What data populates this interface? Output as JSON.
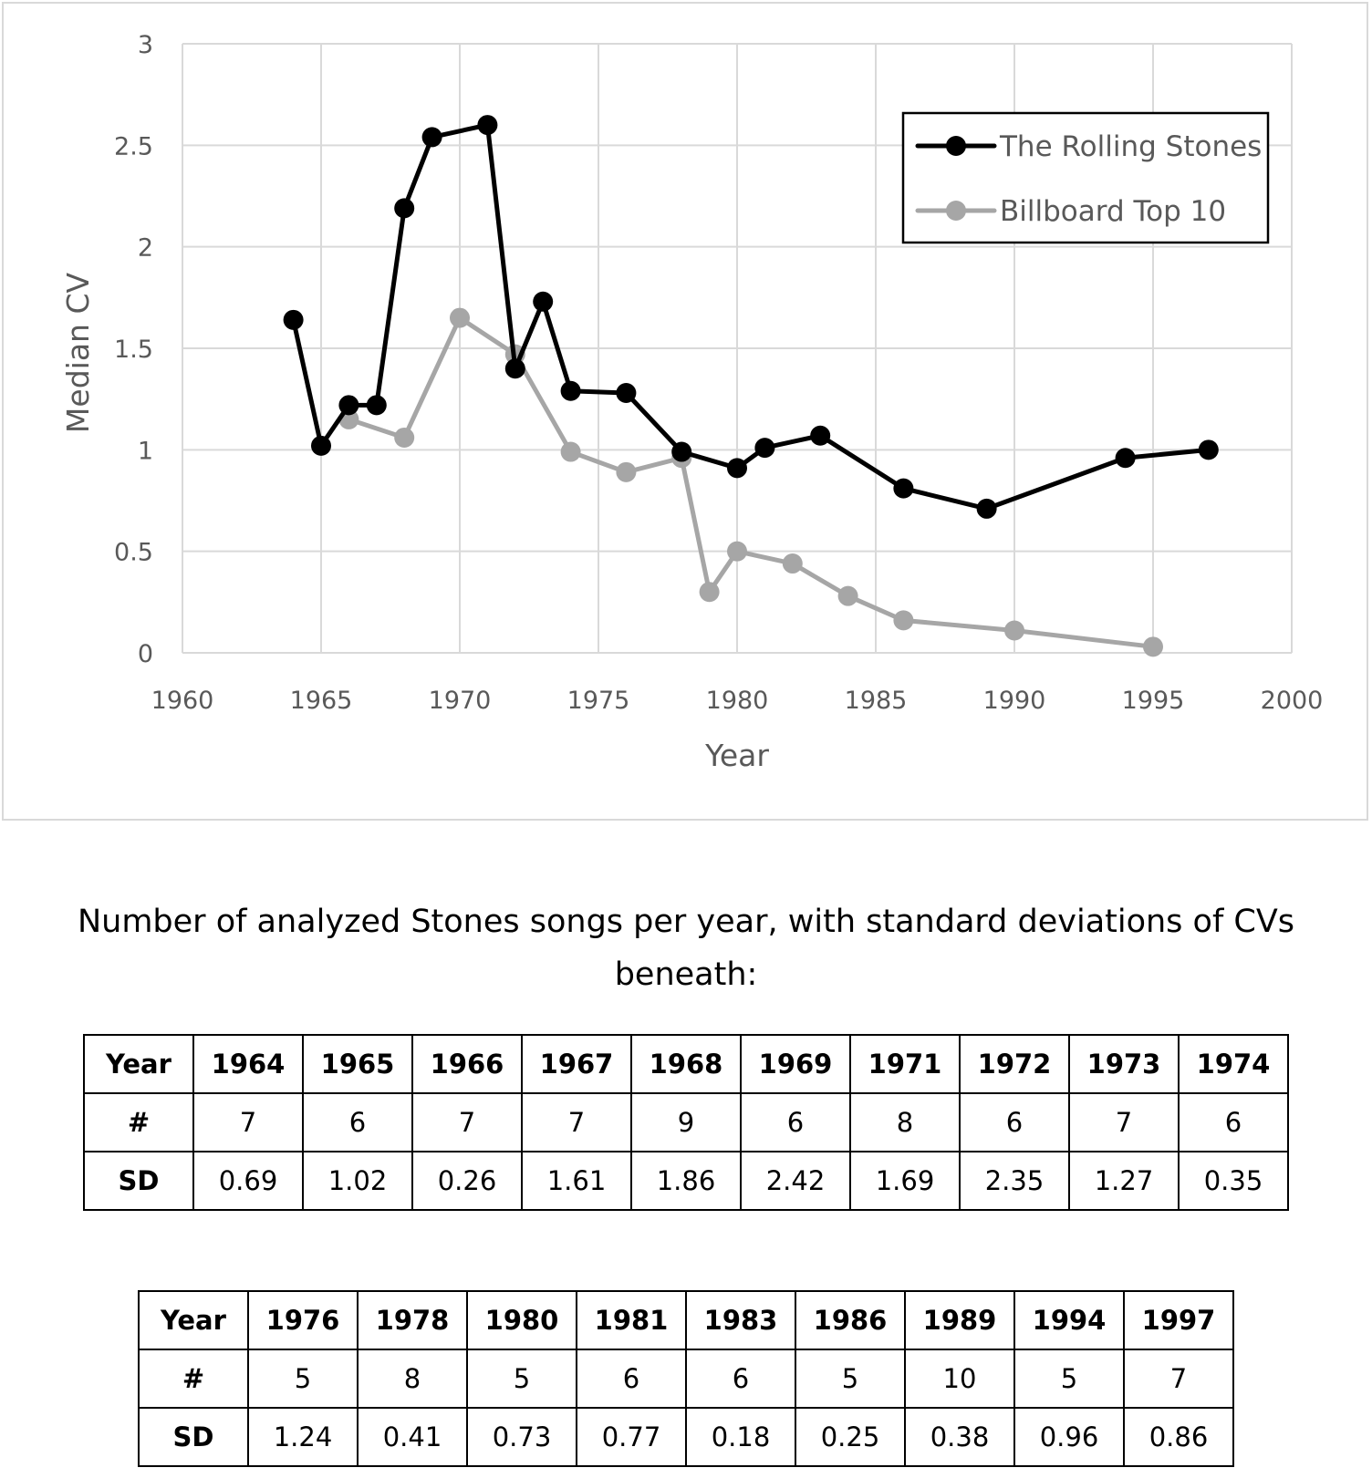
{
  "chart_data": {
    "type": "line",
    "title": "",
    "xlabel": "Year",
    "ylabel": "Median CV",
    "xlim": [
      1960,
      2000
    ],
    "ylim": [
      0,
      3
    ],
    "x_ticks": [
      "1960",
      "1965",
      "1970",
      "1975",
      "1980",
      "1985",
      "1990",
      "1995",
      "2000"
    ],
    "y_ticks": [
      "0",
      "0.5",
      "1",
      "1.5",
      "2",
      "2.5",
      "3"
    ],
    "grid": true,
    "legend_position": "top-right",
    "series": [
      {
        "name": "The Rolling Stones",
        "color": "#000000",
        "points": [
          [
            1964,
            1.64
          ],
          [
            1965,
            1.02
          ],
          [
            1966,
            1.22
          ],
          [
            1967,
            1.22
          ],
          [
            1968,
            2.19
          ],
          [
            1969,
            2.54
          ],
          [
            1971,
            2.6
          ],
          [
            1972,
            1.4
          ],
          [
            1973,
            1.73
          ],
          [
            1974,
            1.29
          ],
          [
            1976,
            1.28
          ],
          [
            1978,
            0.99
          ],
          [
            1980,
            0.91
          ],
          [
            1981,
            1.01
          ],
          [
            1983,
            1.07
          ],
          [
            1986,
            0.81
          ],
          [
            1989,
            0.71
          ],
          [
            1994,
            0.96
          ],
          [
            1997,
            1.0
          ]
        ]
      },
      {
        "name": "Billboard Top 10",
        "color": "#a6a6a6",
        "points": [
          [
            1966,
            1.15
          ],
          [
            1968,
            1.06
          ],
          [
            1970,
            1.65
          ],
          [
            1972,
            1.47
          ],
          [
            1974,
            0.99
          ],
          [
            1976,
            0.89
          ],
          [
            1978,
            0.96
          ],
          [
            1979,
            0.3
          ],
          [
            1980,
            0.5
          ],
          [
            1982,
            0.44
          ],
          [
            1984,
            0.28
          ],
          [
            1986,
            0.16
          ],
          [
            1990,
            0.11
          ],
          [
            1995,
            0.03
          ]
        ]
      }
    ]
  },
  "caption": {
    "line1": "Number of analyzed Stones songs per year, with standard deviations of CVs",
    "line2": "beneath:"
  },
  "tables": [
    {
      "rows": [
        [
          "Year",
          "1964",
          "1965",
          "1966",
          "1967",
          "1968",
          "1969",
          "1971",
          "1972",
          "1973",
          "1974"
        ],
        [
          "#",
          "7",
          "6",
          "7",
          "7",
          "9",
          "6",
          "8",
          "6",
          "7",
          "6"
        ],
        [
          "SD",
          "0.69",
          "1.02",
          "0.26",
          "1.61",
          "1.86",
          "2.42",
          "1.69",
          "2.35",
          "1.27",
          "0.35"
        ]
      ]
    },
    {
      "rows": [
        [
          "Year",
          "1976",
          "1978",
          "1980",
          "1981",
          "1983",
          "1986",
          "1989",
          "1994",
          "1997"
        ],
        [
          "#",
          "5",
          "8",
          "5",
          "6",
          "6",
          "5",
          "10",
          "5",
          "7"
        ],
        [
          "SD",
          "1.24",
          "0.41",
          "0.73",
          "0.77",
          "0.18",
          "0.25",
          "0.38",
          "0.96",
          "0.86"
        ]
      ]
    }
  ]
}
